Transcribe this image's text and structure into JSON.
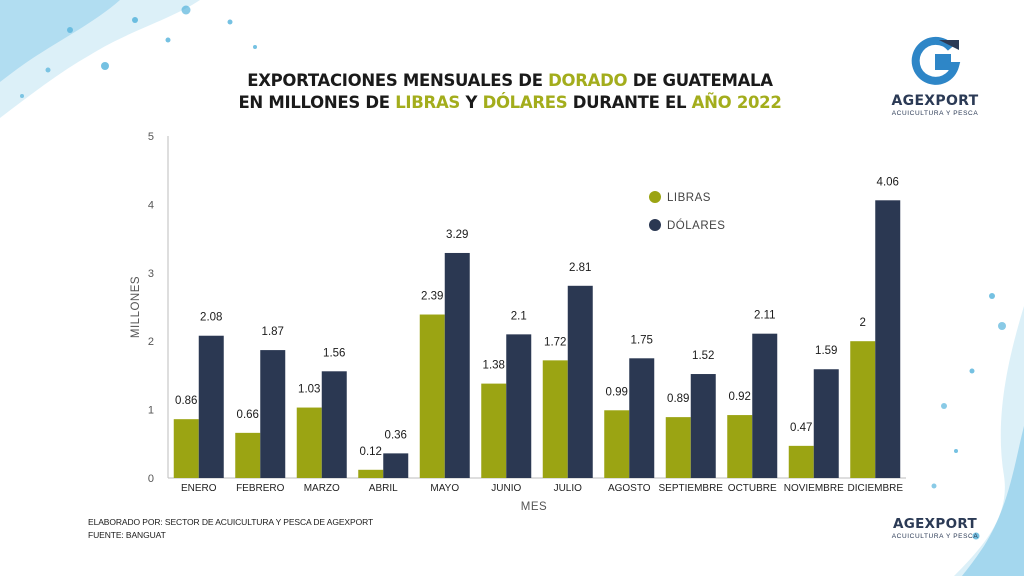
{
  "header": {
    "title_line1": [
      {
        "text": "EXPORTACIONES MENSUALES DE ",
        "hl": false
      },
      {
        "text": "DORADO",
        "hl": true
      },
      {
        "text": " DE GUATEMALA",
        "hl": false
      }
    ],
    "title_line2": [
      {
        "text": "EN MILLONES DE ",
        "hl": false
      },
      {
        "text": "LIBRAS",
        "hl": true
      },
      {
        "text": " Y ",
        "hl": false
      },
      {
        "text": "DÓLARES",
        "hl": true
      },
      {
        "text": " DURANTE EL ",
        "hl": false
      },
      {
        "text": "AÑO 2022",
        "hl": true
      }
    ]
  },
  "brand": {
    "name": "AGEXPORT",
    "subtitle": "ACUICULTURA Y PESCA",
    "footer_name": "AGEXPORT",
    "footer_subtitle": "ACUICULTURA Y PESCA"
  },
  "credits": {
    "line1": "ELABORADO POR: SECTOR DE ACUICULTURA Y PESCA DE AGEXPORT",
    "line2": "FUENTE:  BANGUAT"
  },
  "colors": {
    "libras": "#9ba413",
    "dolares": "#2b3852",
    "highlight": "#a3ad1c",
    "brand": "#2b3a55",
    "water": "#3aa7d6"
  },
  "chart_data": {
    "type": "bar",
    "xlabel": "MES",
    "ylabel": "MILLONES",
    "ylim": [
      0,
      5
    ],
    "yticks": [
      0,
      1,
      2,
      3,
      4,
      5
    ],
    "grid": false,
    "legend_position": "top-right",
    "categories": [
      "ENERO",
      "FEBRERO",
      "MARZO",
      "ABRIL",
      "MAYO",
      "JUNIO",
      "JULIO",
      "AGOSTO",
      "SEPTIEMBRE",
      "OCTUBRE",
      "NOVIEMBRE",
      "DICIEMBRE"
    ],
    "series": [
      {
        "name": "LIBRAS",
        "color": "#9ba413",
        "values": [
          0.86,
          0.66,
          1.03,
          0.12,
          2.39,
          1.38,
          1.72,
          0.99,
          0.89,
          0.92,
          0.47,
          2
        ],
        "labels": [
          "0.86",
          "0.66",
          "1.03",
          "0.12",
          "2.39",
          "1.38",
          "1.72",
          "0.99",
          "0.89",
          "0.92",
          "0.47",
          "2"
        ]
      },
      {
        "name": "DÓLARES",
        "color": "#2b3852",
        "values": [
          2.08,
          1.87,
          1.56,
          0.36,
          3.29,
          2.1,
          2.81,
          1.75,
          1.52,
          2.11,
          1.59,
          4.06
        ],
        "labels": [
          "2.08",
          "1.87",
          "1.56",
          "0.36",
          "3.29",
          "2.1",
          "2.81",
          "1.75",
          "1.52",
          "2.11",
          "1.59",
          "4.06"
        ]
      }
    ]
  }
}
